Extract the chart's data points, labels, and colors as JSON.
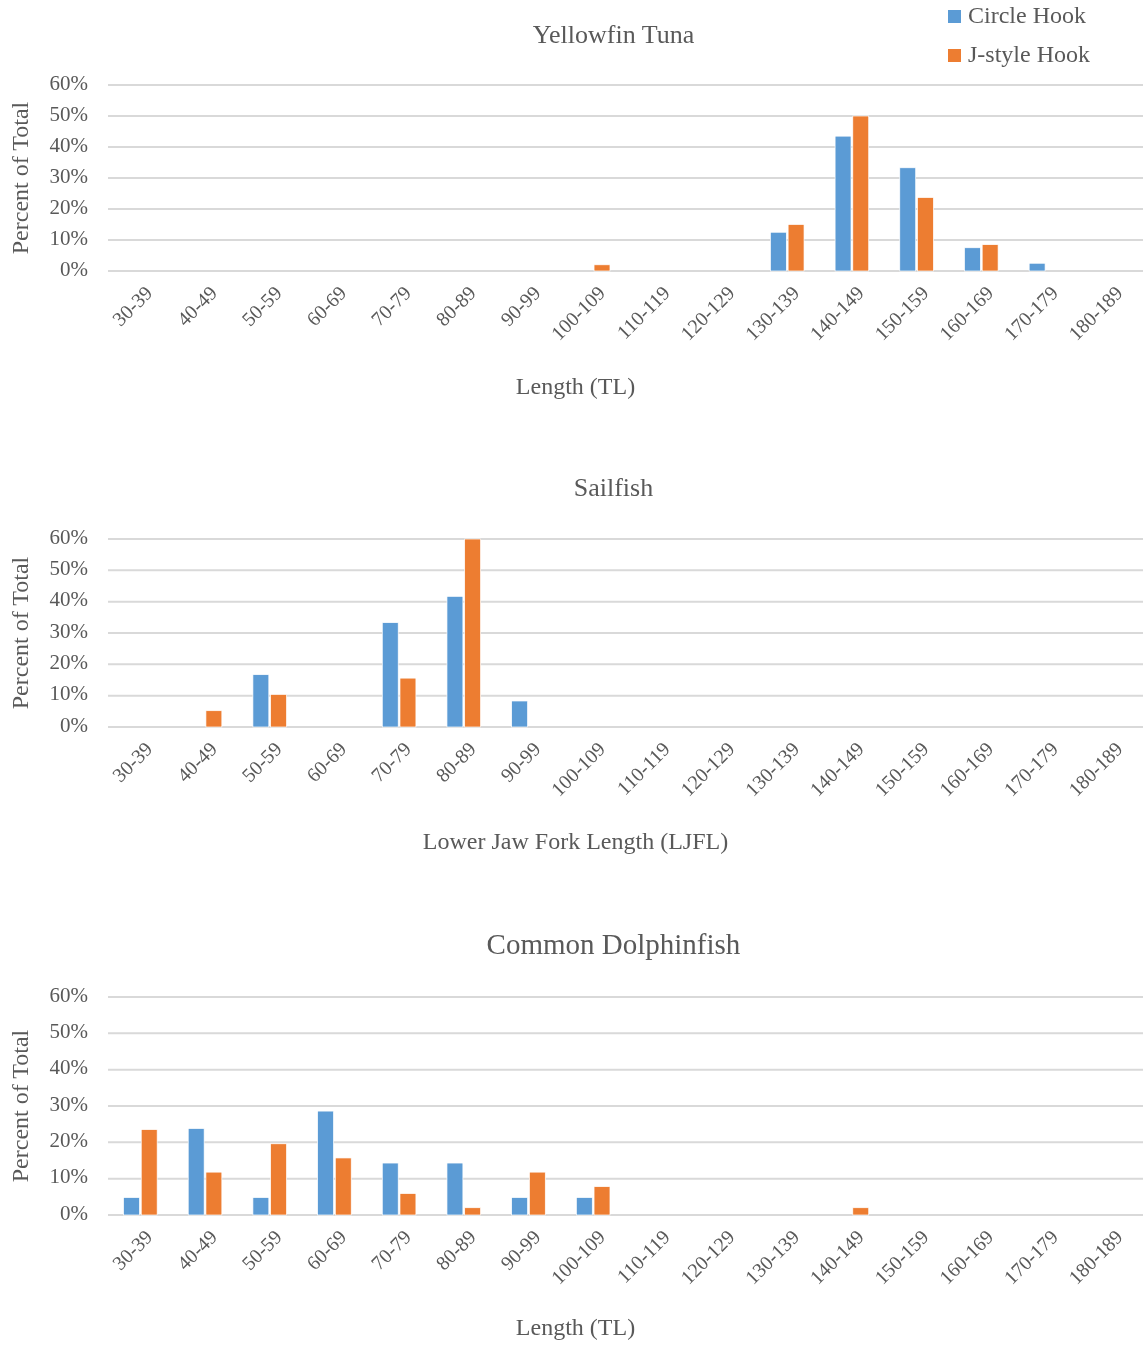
{
  "chart_data": [
    {
      "type": "bar",
      "title": "Yellowfin Tuna",
      "xlabel": "Length (TL)",
      "ylabel": "Percent of Total",
      "legend": "top right",
      "grid": "y",
      "categories": [
        "30-39",
        "40-49",
        "50-59",
        "60-69",
        "70-79",
        "80-89",
        "90-99",
        "100-109",
        "110-119",
        "120-129",
        "130-139",
        "140-149",
        "150-159",
        "160-169",
        "170-179",
        "180-189"
      ],
      "ylim": [
        0,
        60
      ],
      "yticks": [
        {
          "value": 0,
          "label": "0%"
        },
        {
          "value": 10,
          "label": "10%"
        },
        {
          "value": 20,
          "label": "20%"
        },
        {
          "value": 30,
          "label": "30%"
        },
        {
          "value": 40,
          "label": "40%"
        },
        {
          "value": 50,
          "label": "50%"
        },
        {
          "value": 60,
          "label": "60%"
        }
      ],
      "series": [
        {
          "name": "Circle Hook",
          "color": "#5b9bd5",
          "values": [
            0,
            0,
            0,
            0,
            0,
            0,
            0,
            0,
            0,
            0,
            12.5,
            43.5,
            33.3,
            7.5,
            2.5,
            0
          ]
        },
        {
          "name": "J-style Hook",
          "color": "#ed7d31",
          "values": [
            0,
            0,
            0,
            0,
            0,
            0,
            0,
            2,
            0,
            0,
            15,
            50,
            23.7,
            8.5,
            0,
            0
          ]
        }
      ]
    },
    {
      "type": "bar",
      "title": "Sailfish",
      "xlabel": "Lower Jaw Fork Length (LJFL)",
      "ylabel": "Percent of Total",
      "grid": "y",
      "categories": [
        "30-39",
        "40-49",
        "50-59",
        "60-69",
        "70-79",
        "80-89",
        "90-99",
        "100-109",
        "110-119",
        "120-129",
        "130-139",
        "140-149",
        "150-159",
        "160-169",
        "170-179",
        "180-189"
      ],
      "ylim": [
        0,
        60
      ],
      "yticks": [
        {
          "value": 0,
          "label": "0%"
        },
        {
          "value": 10,
          "label": "10%"
        },
        {
          "value": 20,
          "label": "20%"
        },
        {
          "value": 30,
          "label": "30%"
        },
        {
          "value": 40,
          "label": "40%"
        },
        {
          "value": 50,
          "label": "50%"
        },
        {
          "value": 60,
          "label": "60%"
        }
      ],
      "series": [
        {
          "color": "#5b9bd5",
          "values": [
            0,
            0,
            16.7,
            0,
            33.3,
            41.7,
            8.3,
            0,
            0,
            0,
            0,
            0,
            0,
            0,
            0,
            0
          ]
        },
        {
          "color": "#ed7d31",
          "values": [
            0,
            5.2,
            10.4,
            0,
            15.6,
            60,
            0,
            0,
            0,
            0,
            0,
            0,
            0,
            0,
            0,
            0
          ]
        }
      ]
    },
    {
      "type": "bar",
      "title": "Common Dolphinfish",
      "xlabel": "Length (TL)",
      "ylabel": "Percent of Total",
      "grid": "y",
      "categories": [
        "30-39",
        "40-49",
        "50-59",
        "60-69",
        "70-79",
        "80-89",
        "90-99",
        "100-109",
        "110-119",
        "120-129",
        "130-139",
        "140-149",
        "150-159",
        "160-169",
        "170-179",
        "180-189"
      ],
      "ylim": [
        0,
        60
      ],
      "yticks": [
        {
          "value": 0,
          "label": "0%"
        },
        {
          "value": 10,
          "label": "10%"
        },
        {
          "value": 20,
          "label": "20%"
        },
        {
          "value": 30,
          "label": "30%"
        },
        {
          "value": 40,
          "label": "40%"
        },
        {
          "value": 50,
          "label": "50%"
        },
        {
          "value": 60,
          "label": "60%"
        }
      ],
      "series": [
        {
          "color": "#5b9bd5",
          "values": [
            4.8,
            23.8,
            4.8,
            28.6,
            14.3,
            14.3,
            4.8,
            4.8,
            0,
            0,
            0,
            0,
            0,
            0,
            0,
            0
          ]
        },
        {
          "color": "#ed7d31",
          "values": [
            23.5,
            11.8,
            19.6,
            15.7,
            5.9,
            2,
            11.8,
            7.8,
            0,
            0,
            0,
            2,
            0,
            0,
            0,
            0
          ]
        }
      ]
    }
  ]
}
